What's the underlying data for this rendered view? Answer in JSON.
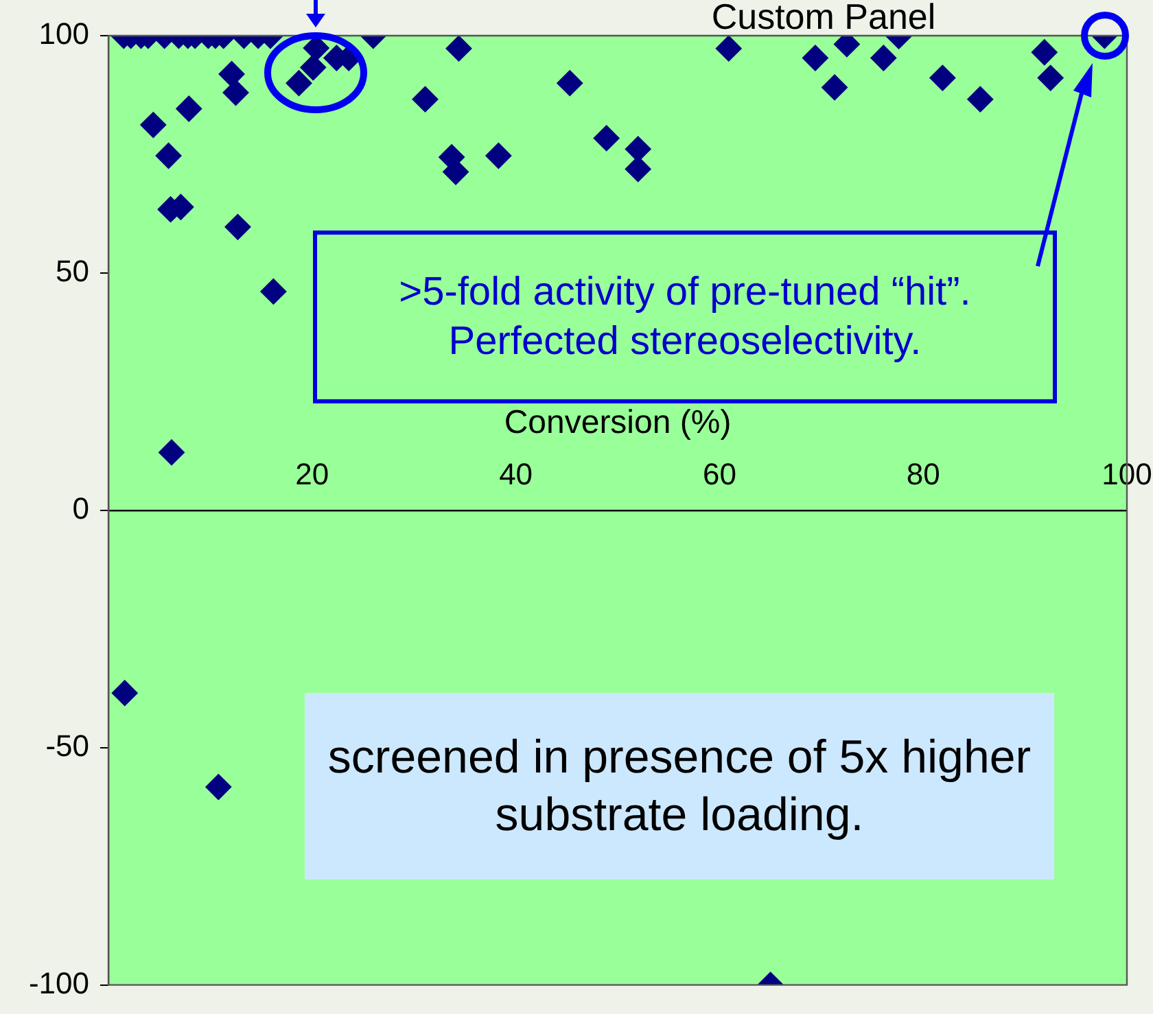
{
  "chart_data": {
    "type": "scatter",
    "title": "Custom Panel",
    "xlabel": "Conversion (%)",
    "x": [
      1.5,
      2.2,
      3.2,
      3.9,
      5.5,
      6.9,
      7.8,
      8.5,
      9.8,
      10.5,
      11.3,
      13.3,
      14.7,
      15.9,
      26,
      20.4,
      20.1,
      18.7,
      22.4,
      23.6,
      4.4,
      5.9,
      6.1,
      7.1,
      7.9,
      12.1,
      12.5,
      12.7,
      16.2,
      31.1,
      34.4,
      33.7,
      34.1,
      38.3,
      45.3,
      48.9,
      52,
      52,
      60.9,
      69.4,
      72.5,
      71.3,
      76.1,
      77.6,
      81.9,
      85.6,
      91.9,
      92.5,
      97.8,
      6.2,
      1.6,
      10.8,
      65
    ],
    "values": [
      100,
      100,
      100,
      100,
      100,
      100,
      100,
      100,
      100,
      100,
      100,
      100,
      100,
      100,
      100,
      97.4,
      93.3,
      90,
      95.3,
      95.3,
      81.2,
      74.7,
      63.4,
      63.9,
      84.6,
      91.9,
      88,
      59.7,
      46.1,
      86.6,
      97.3,
      74.4,
      71.3,
      74.7,
      90,
      78.4,
      76.1,
      71.9,
      97.3,
      95.3,
      98.2,
      89.1,
      95.3,
      99.9,
      91.1,
      86.6,
      96.5,
      91.1,
      100,
      12.2,
      -38.5,
      -58.3,
      -100
    ],
    "color": "#000080",
    "marker": "diamond",
    "grid": false,
    "legend": false,
    "xlim": [
      0,
      100
    ],
    "xticks": [
      20,
      40,
      60,
      80,
      100
    ],
    "ylim": [
      -100,
      100
    ],
    "yticks": [
      -100,
      -50,
      0,
      50,
      100
    ],
    "annotations": [
      ">5-fold activity of pre-tuned “hit”. Perfected stereoselectivity.",
      "screened in presence of 5x higher substrate loading."
    ]
  }
}
